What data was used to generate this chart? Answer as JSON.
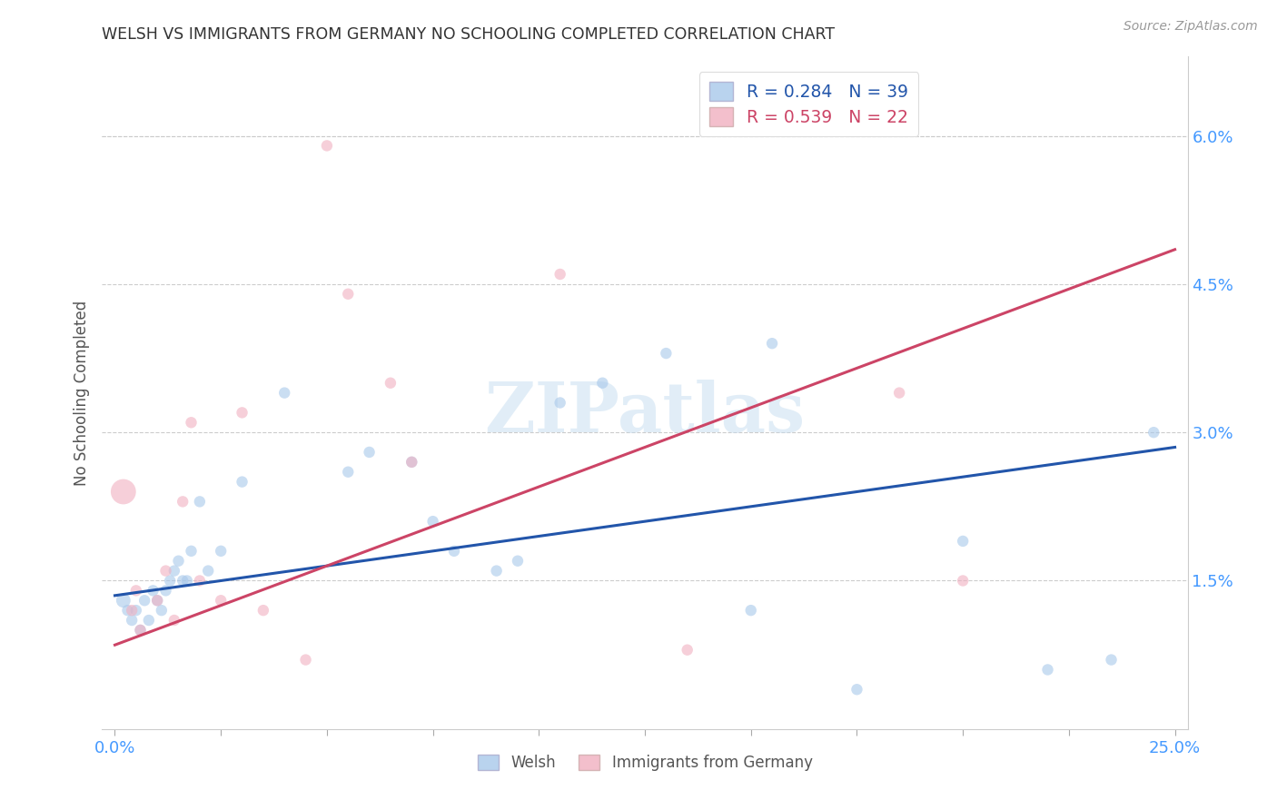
{
  "title": "WELSH VS IMMIGRANTS FROM GERMANY NO SCHOOLING COMPLETED CORRELATION CHART",
  "source": "Source: ZipAtlas.com",
  "ylabel": "No Schooling Completed",
  "x_tick_labels": [
    "0.0%",
    "",
    "",
    "",
    "",
    "",
    "",
    "",
    "",
    "",
    "25.0%"
  ],
  "x_tick_vals": [
    0.0,
    2.5,
    5.0,
    7.5,
    10.0,
    12.5,
    15.0,
    17.5,
    20.0,
    22.5,
    25.0
  ],
  "x_minor_ticks": [
    2.5,
    5.0,
    7.5,
    10.0,
    12.5,
    15.0,
    17.5,
    20.0,
    22.5
  ],
  "y_tick_labels": [
    "1.5%",
    "3.0%",
    "4.5%",
    "6.0%"
  ],
  "y_tick_vals": [
    1.5,
    3.0,
    4.5,
    6.0
  ],
  "xlim": [
    -0.3,
    25.3
  ],
  "ylim": [
    0.0,
    6.8
  ],
  "legend_r_blue": "R = 0.284",
  "legend_n_blue": "N = 39",
  "legend_r_pink": "R = 0.539",
  "legend_n_pink": "N = 22",
  "watermark": "ZIPatlas",
  "blue_color": "#a8c8ea",
  "pink_color": "#f0b0c0",
  "blue_line_color": "#2255aa",
  "pink_line_color": "#cc4466",
  "welsh_x": [
    0.2,
    0.3,
    0.4,
    0.5,
    0.6,
    0.7,
    0.8,
    0.9,
    1.0,
    1.1,
    1.2,
    1.3,
    1.4,
    1.5,
    1.6,
    1.7,
    1.8,
    2.0,
    2.2,
    2.5,
    3.0,
    4.0,
    5.5,
    6.0,
    7.0,
    7.5,
    8.0,
    9.0,
    9.5,
    10.5,
    11.5,
    13.0,
    15.5,
    17.5,
    20.0,
    22.0,
    23.5,
    24.5,
    15.0
  ],
  "welsh_y": [
    1.3,
    1.2,
    1.1,
    1.2,
    1.0,
    1.3,
    1.1,
    1.4,
    1.3,
    1.2,
    1.4,
    1.5,
    1.6,
    1.7,
    1.5,
    1.5,
    1.8,
    2.3,
    1.6,
    1.8,
    2.5,
    3.4,
    2.6,
    2.8,
    2.7,
    2.1,
    1.8,
    1.6,
    1.7,
    3.3,
    3.5,
    3.8,
    3.9,
    0.4,
    1.9,
    0.6,
    0.7,
    3.0,
    1.2
  ],
  "welsh_size": [
    130,
    80,
    80,
    80,
    80,
    80,
    80,
    80,
    80,
    80,
    80,
    80,
    80,
    80,
    80,
    80,
    80,
    80,
    80,
    80,
    80,
    80,
    80,
    80,
    80,
    80,
    80,
    80,
    80,
    80,
    80,
    80,
    80,
    80,
    80,
    80,
    80,
    80,
    80
  ],
  "german_x": [
    0.2,
    0.4,
    0.5,
    0.6,
    1.0,
    1.2,
    1.4,
    1.6,
    1.8,
    2.0,
    2.5,
    3.0,
    3.5,
    4.5,
    5.0,
    5.5,
    6.5,
    7.0,
    10.5,
    13.5,
    18.5,
    20.0
  ],
  "german_y": [
    2.4,
    1.2,
    1.4,
    1.0,
    1.3,
    1.6,
    1.1,
    2.3,
    3.1,
    1.5,
    1.3,
    3.2,
    1.2,
    0.7,
    5.9,
    4.4,
    3.5,
    2.7,
    4.6,
    0.8,
    3.4,
    1.5
  ],
  "german_size": [
    400,
    80,
    80,
    80,
    80,
    80,
    80,
    80,
    80,
    80,
    80,
    80,
    80,
    80,
    80,
    80,
    80,
    80,
    80,
    80,
    80,
    80
  ],
  "blue_trend_y_start": 1.35,
  "blue_trend_y_end": 2.85,
  "pink_trend_y_start": 0.85,
  "pink_trend_y_end": 4.85,
  "grid_color": "#cccccc",
  "tick_color": "#aaaaaa",
  "label_color": "#4499ff",
  "text_color": "#555555",
  "title_color": "#333333",
  "source_color": "#999999"
}
